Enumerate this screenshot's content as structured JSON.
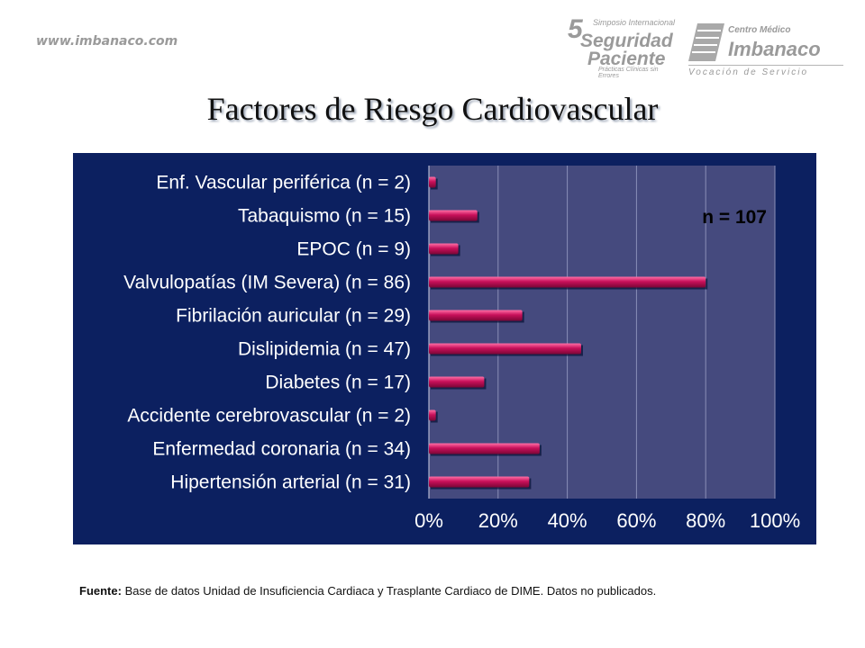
{
  "header": {
    "website": "www.imbanaco.com",
    "logo_simposio": {
      "number": "5",
      "small": "Simposio Internacional",
      "line1": "Seguridad",
      "line2": "Paciente",
      "sub": "Prácticas Clínicas sin Errores"
    },
    "logo_centro": {
      "top": "Centro Médico",
      "name": "Imbanaco",
      "tagline": "Vocación de Servicio"
    }
  },
  "title": "Factores de Riesgo Cardiovascular",
  "footnote": {
    "label": "Fuente:",
    "text": " Base de datos Unidad de Insuficiencia Cardiaca y Trasplante Cardiaco de DIME. Datos no publicados."
  },
  "colors": {
    "panel_background": "#0c2060",
    "plot_background": "#454a7e",
    "bar": "#c8105a",
    "bar_highlight": "#ff6fa6",
    "text": "#ffffff"
  },
  "chart_data": {
    "type": "bar",
    "orientation": "horizontal",
    "categories": [
      "Enf. Vascular periférica (n = 2)",
      "Tabaquismo (n = 15)",
      "EPOC (n = 9)",
      "Valvulopatías (IM Severa) (n = 86)",
      "Fibrilación auricular (n = 29)",
      "Dislipidemia (n = 47)",
      "Diabetes (n = 17)",
      "Accidente cerebrovascular (n = 2)",
      "Enfermedad coronaria (n = 34)",
      "Hipertensión arterial (n = 31)"
    ],
    "values": [
      2,
      14,
      8.5,
      80,
      27,
      44,
      16,
      2,
      32,
      29
    ],
    "xlim": [
      0,
      100
    ],
    "xticks": [
      "0%",
      "20%",
      "40%",
      "60%",
      "80%",
      "100%"
    ],
    "annotation": "n = 107",
    "grid": true,
    "legend": "none"
  }
}
